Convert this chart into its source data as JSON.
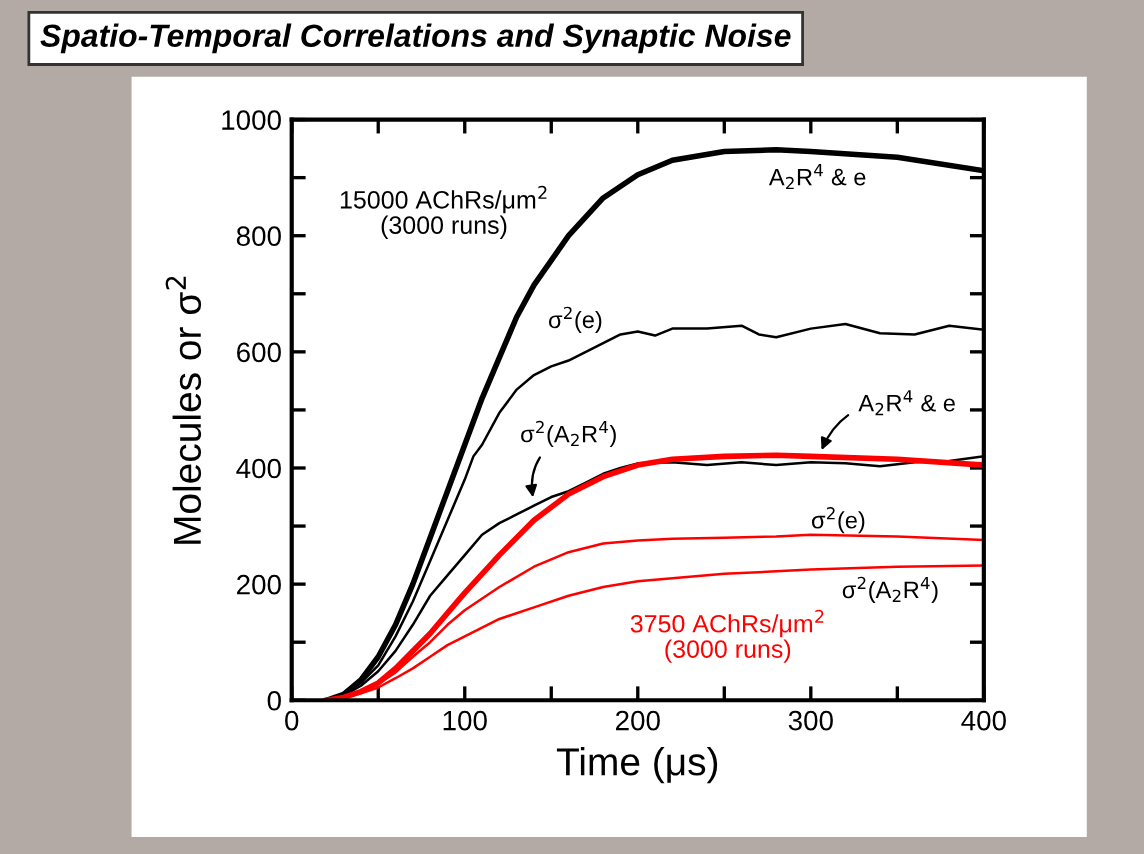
{
  "chart_data": {
    "type": "line",
    "title": "Spatio-Temporal Correlations and Synaptic Noise",
    "xlabel": "Time (μs)",
    "ylabel": "Molecules or σ$^{2}$",
    "xlim": [
      0,
      400
    ],
    "ylim": [
      0,
      1000
    ],
    "xticks": [
      0,
      {
        "value": 50,
        "label": null
      },
      100,
      {
        "value": 150,
        "label": null
      },
      200,
      {
        "value": 250,
        "label": null
      },
      300,
      {
        "value": 350,
        "label": null
      },
      400
    ],
    "yticks": [
      0,
      {
        "value": 100,
        "label": null
      },
      200,
      {
        "value": 300,
        "label": null
      },
      400,
      {
        "value": 500,
        "label": null
      },
      600,
      {
        "value": 700,
        "label": null
      },
      800,
      {
        "value": 900,
        "label": null
      },
      1000
    ],
    "grid": false,
    "legend": false,
    "marker": "none",
    "line_style": "solid",
    "series": [
      {
        "name": "15000 AChRs/μm$^{2}$\n(3000 runs)",
        "color": "#000000",
        "x": [
          20,
          30,
          40,
          50,
          60,
          70,
          80,
          90,
          100,
          110,
          120,
          130,
          140,
          160,
          180,
          200,
          220,
          250,
          280,
          300,
          350,
          400
        ],
        "values": [
          0,
          10,
          35,
          75,
          130,
          200,
          280,
          360,
          440,
          520,
          590,
          660,
          715,
          800,
          865,
          905,
          930,
          945,
          948,
          945,
          935,
          912
        ]
      },
      {
        "color": "#000000",
        "x": [
          20,
          30,
          40,
          50,
          60,
          70,
          80,
          90,
          100,
          105,
          110,
          120,
          130,
          140,
          150,
          160,
          170,
          180,
          190,
          200,
          210,
          220,
          240,
          260,
          270,
          280,
          300,
          320,
          340,
          360,
          380,
          400
        ],
        "values": [
          0,
          10,
          30,
          60,
          110,
          170,
          240,
          310,
          380,
          420,
          440,
          495,
          535,
          560,
          575,
          585,
          600,
          615,
          630,
          635,
          628,
          640,
          640,
          645,
          630,
          625,
          640,
          648,
          632,
          630,
          645,
          638
        ]
      },
      {
        "color": "#000000",
        "x": [
          20,
          30,
          40,
          50,
          60,
          70,
          80,
          90,
          100,
          110,
          120,
          130,
          140,
          150,
          160,
          170,
          180,
          190,
          200,
          220,
          240,
          260,
          280,
          300,
          320,
          340,
          360,
          380,
          400
        ],
        "values": [
          0,
          8,
          25,
          50,
          85,
          130,
          180,
          215,
          250,
          285,
          305,
          320,
          335,
          350,
          360,
          375,
          390,
          400,
          408,
          410,
          405,
          410,
          405,
          410,
          408,
          403,
          410,
          412,
          420
        ]
      },
      {
        "name": "3750 AChRs/μm$^{2}$\n(3000 runs)",
        "color": "#ff0000",
        "x": [
          20,
          30,
          40,
          50,
          60,
          70,
          80,
          90,
          100,
          120,
          140,
          160,
          180,
          200,
          220,
          250,
          280,
          300,
          350,
          400
        ],
        "values": [
          0,
          5,
          15,
          30,
          55,
          85,
          115,
          150,
          185,
          250,
          310,
          355,
          385,
          405,
          415,
          420,
          422,
          420,
          415,
          405
        ]
      },
      {
        "color": "#ff0000",
        "x": [
          20,
          30,
          40,
          50,
          60,
          70,
          80,
          90,
          100,
          120,
          140,
          160,
          180,
          200,
          220,
          250,
          280,
          300,
          350,
          400
        ],
        "values": [
          0,
          5,
          15,
          28,
          48,
          75,
          100,
          130,
          155,
          195,
          230,
          255,
          270,
          275,
          278,
          280,
          282,
          285,
          282,
          276
        ]
      },
      {
        "color": "#ff0000",
        "x": [
          20,
          30,
          40,
          50,
          60,
          70,
          80,
          90,
          100,
          120,
          140,
          160,
          180,
          200,
          220,
          250,
          280,
          300,
          350,
          400
        ],
        "values": [
          0,
          4,
          12,
          22,
          38,
          55,
          75,
          95,
          110,
          140,
          160,
          180,
          195,
          205,
          210,
          218,
          222,
          225,
          230,
          232
        ]
      }
    ],
    "annotations": [
      "A$_{2}$R$^{4}$ & e",
      "σ$^{2}$(e)",
      {
        "text": "σ$^{2}$(A$_{2}$R$^{4}$)",
        "x": 140,
        "y": 340
      },
      {
        "text": "A$_{2}$R$^{4}$ & e",
        "x": 305,
        "y": 422
      },
      "σ$^{2}$(e)",
      "σ$^{2}$(A$_{2}$R$^{4}$)"
    ]
  }
}
